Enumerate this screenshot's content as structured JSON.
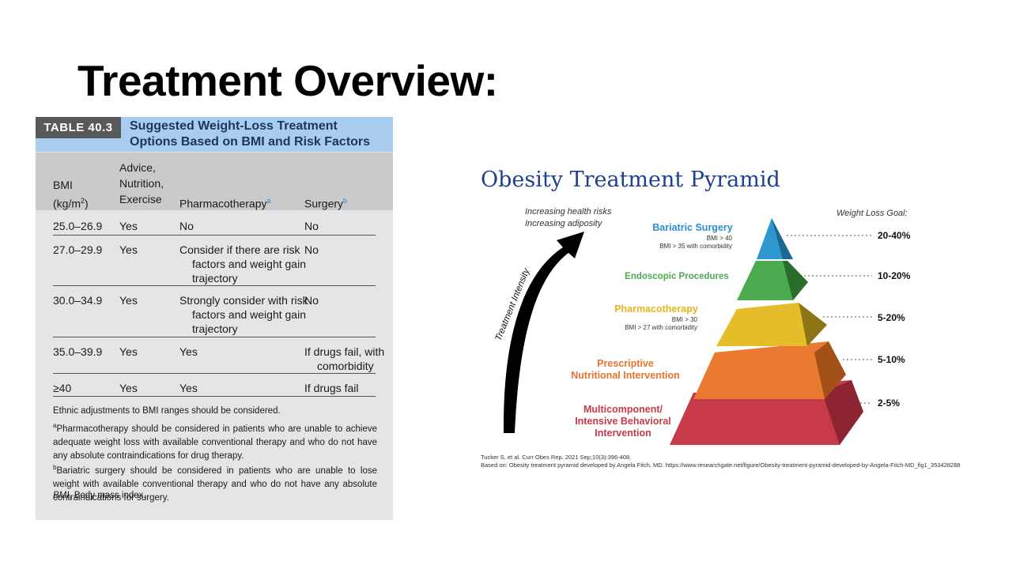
{
  "slide": {
    "title": "Treatment Overview:"
  },
  "table": {
    "badge": "TABLE 40.3",
    "caption_line1": "Suggested Weight-Loss Treatment",
    "caption_line2": "Options Based on BMI and Risk Factors",
    "headers": {
      "bmi_line1": "BMI",
      "bmi_line2": "(kg/m",
      "bmi_sup": "2",
      "bmi_close": ")",
      "advice_line1": "Advice,",
      "advice_line2": "Nutrition,",
      "advice_line3": "Exercise",
      "pharma": "Pharmacotherapy",
      "pharma_sup": "a",
      "surgery": "Surgery",
      "surgery_sup": "b"
    },
    "rows": [
      {
        "bmi": "25.0–26.9",
        "advice": "Yes",
        "pharma": "No",
        "surgery": "No"
      },
      {
        "bmi": "27.0–29.9",
        "advice": "Yes",
        "pharma": "Consider if there are risk factors and weight gain trajectory",
        "surgery": "No"
      },
      {
        "bmi": "30.0–34.9",
        "advice": "Yes",
        "pharma": "Strongly consider with risk factors and weight gain trajectory",
        "surgery": "No"
      },
      {
        "bmi": "35.0–39.9",
        "advice": "Yes",
        "pharma": "Yes",
        "surgery": "If drugs fail, with comorbidity"
      },
      {
        "bmi": "≥40",
        "advice": "Yes",
        "pharma": "Yes",
        "surgery": "If drugs fail"
      }
    ],
    "footnotes": {
      "ethnic": "Ethnic adjustments to BMI ranges should be considered.",
      "a_mark": "a",
      "a_text": "Pharmacotherapy should be considered in patients who are unable to achieve adequate weight loss with available conventional therapy and who do not have any absolute contraindications for drug therapy.",
      "b_mark": "b",
      "b_text": "Bariatric surgery should be considered in patients who are unable to lose weight with available conventional therapy and who do not have any absolute contraindications for surgery.",
      "bmi_abbr": "BMI",
      "bmi_def": ", Body mass index."
    }
  },
  "pyramid": {
    "title": "Obesity Treatment Pyramid",
    "notes": {
      "line1": "Increasing health risks",
      "line2": "Increasing adiposity",
      "goal_header": "Weight Loss Goal:"
    },
    "arrow_label": "Treatment Intensity",
    "levels": [
      {
        "name": "Bariatric Surgery",
        "sub1": "BMI > 40",
        "sub2": "BMI > 35 with comorbidity",
        "goal": "20-40%",
        "color": "#2f97cf"
      },
      {
        "name": "Endoscopic Procedures",
        "goal": "10-20%",
        "color": "#4caa4f"
      },
      {
        "name": "Pharmacotherapy",
        "sub1": "BMI > 30",
        "sub2": "BMI > 27 with comorbidity",
        "goal": "5-20%",
        "color": "#e5bd2a"
      },
      {
        "name_line1": "Prescriptive",
        "name_line2": "Nutritional Intervention",
        "goal": "5-10%",
        "color": "#ea7a2f"
      },
      {
        "name_line1": "Multicomponent/",
        "name_line2": "Intensive Behavioral",
        "name_line3": "Intervention",
        "goal": "2-5%",
        "color": "#c73a49"
      }
    ],
    "citation1": "Tucker S, et al. Curr Obes Rep. 2021 Sep;10(3):396-408.",
    "citation2": "Based on: Obesity treatment pyramid developed by Angela Fitch, MD. https://www.researchgate.net/figure/Obesity-treatment-pyramid-developed-by-Angela-Fitch-MD_fig1_353428288"
  }
}
